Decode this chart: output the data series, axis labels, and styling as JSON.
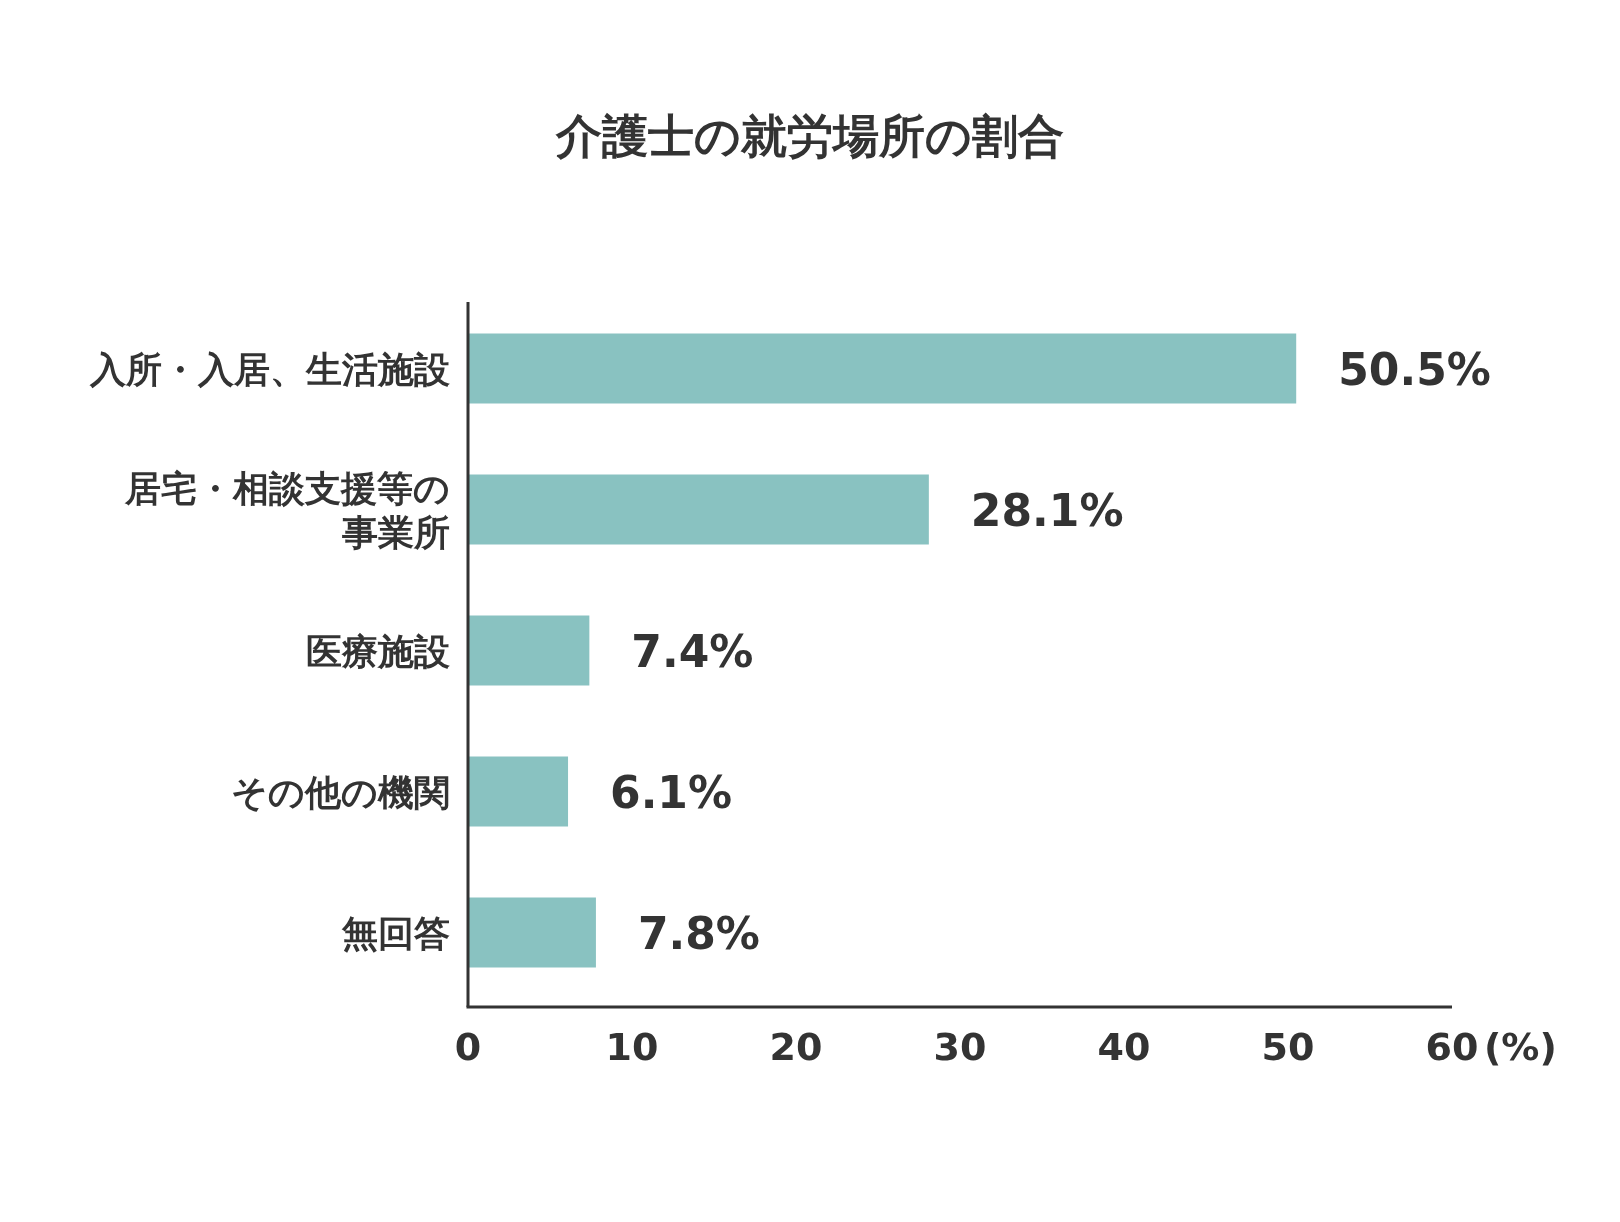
{
  "chart_data": {
    "type": "bar",
    "orientation": "horizontal",
    "title": "介護士の就労場所の割合",
    "xlabel": "(%)",
    "categories": [
      "入所・入居、生活施設",
      "居宅・相談支援等の事業所",
      "医療施設",
      "その他の機関",
      "無回答"
    ],
    "values": [
      50.5,
      28.1,
      7.4,
      6.1,
      7.8
    ],
    "value_labels": [
      "50.5%",
      "28.1%",
      "7.4%",
      "6.1%",
      "7.8%"
    ],
    "color": "#89c2c1",
    "xlim": [
      0,
      60
    ],
    "xticks": [
      0,
      10,
      20,
      30,
      40,
      50,
      60
    ],
    "grid": false
  }
}
